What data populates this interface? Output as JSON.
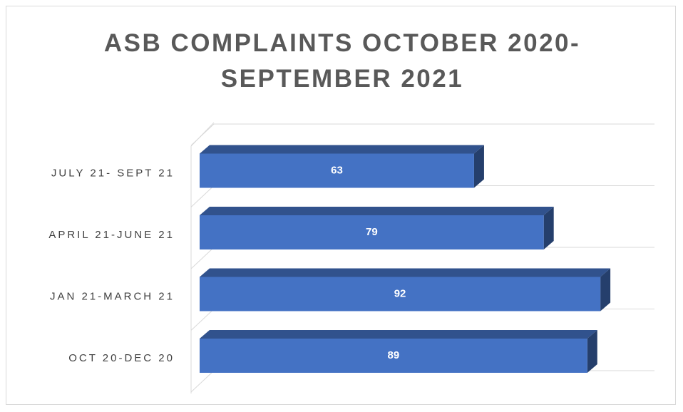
{
  "chart_data": {
    "type": "bar",
    "orientation": "horizontal",
    "title": "ASB COMPLAINTS OCTOBER 2020-SEPTEMBER 2021",
    "categories": [
      "OCT 20-DEC 20",
      "JAN 21-MARCH 21",
      "APRIL 21-JUNE 21",
      "JULY 21- SEPT 21"
    ],
    "values": [
      89,
      92,
      79,
      63
    ],
    "color": "#4472c4"
  }
}
